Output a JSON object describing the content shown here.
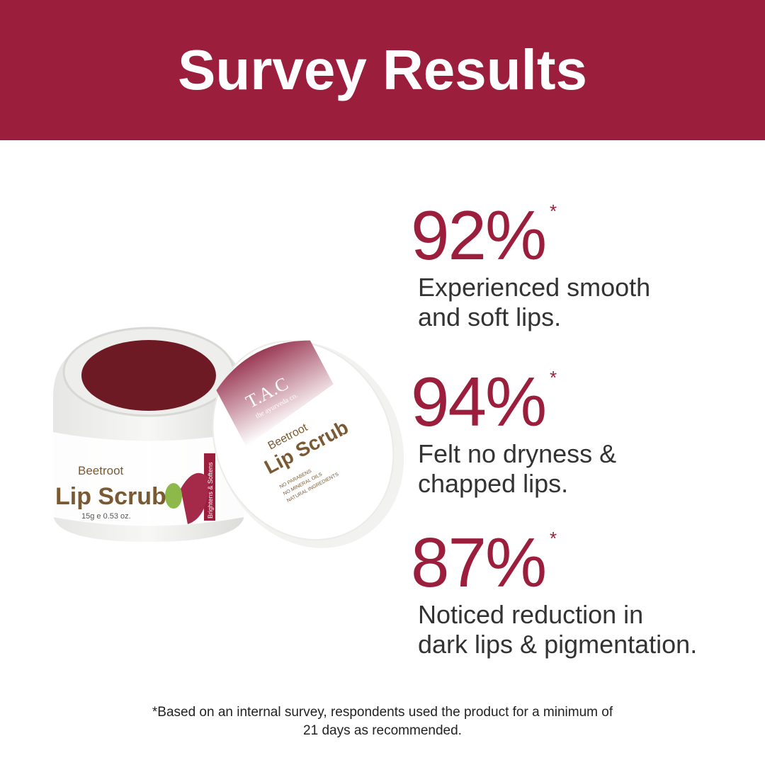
{
  "header": {
    "title": "Survey Results"
  },
  "stats": [
    {
      "value": "92%",
      "mark": "*",
      "text_line1": "Experienced smooth",
      "text_line2": "and soft lips."
    },
    {
      "value": "94%",
      "mark": "*",
      "text_line1": "Felt no dryness &",
      "text_line2": "chapped lips."
    },
    {
      "value": "87%",
      "mark": "*",
      "text_line1": "Noticed reduction in",
      "text_line2": "dark lips & pigmentation."
    }
  ],
  "product": {
    "brand": "T.A.C",
    "brand_sub": "the ayurveda co.",
    "name_line1": "Beetroot",
    "name_line2": "Lip Scrub",
    "size": "15g e 0.53 oz.",
    "side_label": "Brightens & Softens",
    "lid_claims": [
      "NO PARABENS",
      "NO MINERAL OILS",
      "NATURAL INGREDIENTS"
    ]
  },
  "footnote": {
    "line1": "*Based on an internal survey, respondents used the product for a minimum of",
    "line2": "21 days as recommended."
  },
  "colors": {
    "accent": "#9b1f3c",
    "text": "#333333",
    "scrub": "#6e1a24"
  }
}
